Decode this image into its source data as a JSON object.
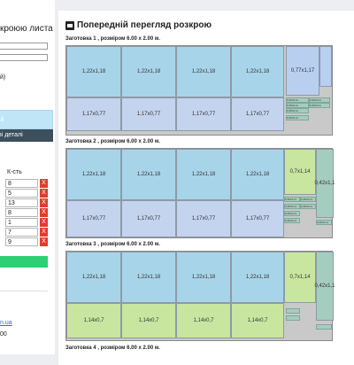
{
  "sidebar": {
    "title": "кроюю листа",
    "option_label": "й)",
    "btn_light_label": "ій",
    "btn_dark_label": "ві деталі",
    "qty_header": "К-сть",
    "quantities": [
      "8",
      "5",
      "13",
      "8",
      "1",
      "7",
      "9"
    ],
    "delete_label": "X",
    "btn_green_label": "",
    "link_text": "n.ua",
    "bottom_number": "00"
  },
  "main": {
    "header_title": "Попередній перегляд розкрою",
    "sheets": [
      {
        "title": "Заготовка  1 , розміром  6.00  x  2.00  м.",
        "top_label": "1,22x1,18",
        "bottom_label": "1,17x0,77",
        "extra_label": "0,77x1,17",
        "tiny_labels": [
          "0,35x0,11",
          "0,35x0,11",
          "0,35x0,11",
          "0,35x0,11",
          "0,35x0,11",
          "0,35x0,11"
        ]
      },
      {
        "title": "Заготовка  2 , розміром  6.00  x  2.00  м.",
        "top_label": "1,22x1,18",
        "bottom_label": "1,17x0,77",
        "extra_label": "0,7x1,14",
        "side_label": "0,42x1,1",
        "tiny_labels": [
          "0,35x0,11",
          "0,35x0,11",
          "0,35x0,11",
          "0,35x0,11",
          "0,35x0,11",
          "0,35x0,11",
          "0,35x0,11"
        ]
      },
      {
        "title": "Заготовка  3 , розміром  6.00  x  2.00  м.",
        "top_label": "1,22x1,18",
        "bottom_label": "1,14x0,7",
        "extra_label": "0,7x1,14",
        "side_label": "0,42x1,1"
      },
      {
        "title": "Заготовка  4 , розміром  6.00  x  2.00  м."
      }
    ]
  },
  "colors": {
    "piece_blue": "#a8d4ea",
    "piece_lavender": "#c4d3ee",
    "piece_green": "#c8e6a0",
    "delete_red": "#e23b2e",
    "action_green": "#2fcf73",
    "dark_button": "#3d4e5d"
  }
}
